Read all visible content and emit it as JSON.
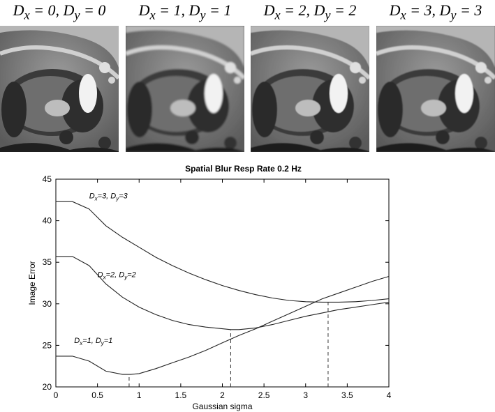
{
  "panels": [
    {
      "name": "D",
      "x_sub": "x",
      "x_val": " = 0, ",
      "y_sub": "y",
      "y_val": " = 0",
      "blur": 0
    },
    {
      "name": "D",
      "x_sub": "x",
      "x_val": " = 1, ",
      "y_sub": "y",
      "y_val": " = 1",
      "blur": 1.2
    },
    {
      "name": "D",
      "x_sub": "x",
      "x_val": " = 2, ",
      "y_sub": "y",
      "y_val": " = 2",
      "blur": 0.6
    },
    {
      "name": "D",
      "x_sub": "x",
      "x_val": " = 3, ",
      "y_sub": "y",
      "y_val": " = 3",
      "blur": 0.9
    }
  ],
  "chart_data": {
    "type": "line",
    "title": "Spatial Blur Resp Rate 0.2 Hz",
    "xlabel": "Gaussian sigma",
    "ylabel": "Image Error",
    "xlim": [
      0,
      4
    ],
    "ylim": [
      20,
      45
    ],
    "xticks": [
      0,
      0.5,
      1,
      1.5,
      2,
      2.5,
      3,
      3.5,
      4
    ],
    "xtick_labels": [
      "0",
      "0.5",
      "1",
      "1.5",
      "2",
      "2.5",
      "3",
      "3.5",
      "4"
    ],
    "yticks": [
      20,
      25,
      30,
      35,
      40,
      45
    ],
    "ytick_labels": [
      "20",
      "25",
      "30",
      "35",
      "40",
      "45"
    ],
    "grid": false,
    "series": [
      {
        "name": "Dx=1, Dy=1",
        "label": {
          "D1": "D",
          "s1": "x",
          "mid": "=1, ",
          "D2": "D",
          "s2": "y",
          "end": "=1",
          "at": [
            0.22,
            25.3
          ]
        },
        "x": [
          0,
          0.2,
          0.4,
          0.6,
          0.8,
          0.9,
          1.0,
          1.2,
          1.4,
          1.6,
          1.8,
          2.0,
          2.2,
          2.4,
          2.6,
          2.8,
          3.0,
          3.2,
          3.4,
          3.6,
          3.8,
          4.0
        ],
        "y": [
          23.7,
          23.7,
          23.1,
          21.9,
          21.5,
          21.5,
          21.6,
          22.2,
          22.9,
          23.6,
          24.4,
          25.3,
          26.2,
          27.0,
          27.9,
          28.8,
          29.7,
          30.6,
          31.3,
          32.0,
          32.7,
          33.3
        ],
        "min_x": 0.88
      },
      {
        "name": "Dx=2, Dy=2",
        "label": {
          "D1": "D",
          "s1": "x",
          "mid": "=2, ",
          "D2": "D",
          "s2": "y",
          "end": "=2",
          "at": [
            0.5,
            33.2
          ]
        },
        "x": [
          0,
          0.2,
          0.4,
          0.6,
          0.8,
          1.0,
          1.2,
          1.4,
          1.6,
          1.8,
          2.0,
          2.1,
          2.2,
          2.4,
          2.6,
          2.8,
          3.0,
          3.2,
          3.4,
          3.6,
          3.8,
          4.0
        ],
        "y": [
          35.7,
          35.7,
          34.6,
          32.4,
          30.8,
          29.6,
          28.7,
          28.0,
          27.5,
          27.2,
          27.0,
          26.9,
          26.9,
          27.1,
          27.5,
          28.0,
          28.5,
          28.9,
          29.3,
          29.6,
          29.9,
          30.2
        ],
        "min_x": 2.1
      },
      {
        "name": "Dx=3, Dy=3",
        "label": {
          "D1": "D",
          "s1": "x",
          "mid": "=3, ",
          "D2": "D",
          "s2": "y",
          "end": "=3",
          "at": [
            0.4,
            42.7
          ]
        },
        "x": [
          0,
          0.2,
          0.4,
          0.6,
          0.8,
          1.0,
          1.2,
          1.4,
          1.6,
          1.8,
          2.0,
          2.2,
          2.4,
          2.6,
          2.8,
          3.0,
          3.2,
          3.27,
          3.4,
          3.6,
          3.8,
          4.0
        ],
        "y": [
          42.3,
          42.3,
          41.4,
          39.4,
          38.0,
          36.8,
          35.6,
          34.6,
          33.7,
          32.9,
          32.2,
          31.6,
          31.1,
          30.7,
          30.4,
          30.25,
          30.2,
          30.2,
          30.2,
          30.25,
          30.4,
          30.6
        ],
        "min_x": 3.27
      }
    ]
  }
}
